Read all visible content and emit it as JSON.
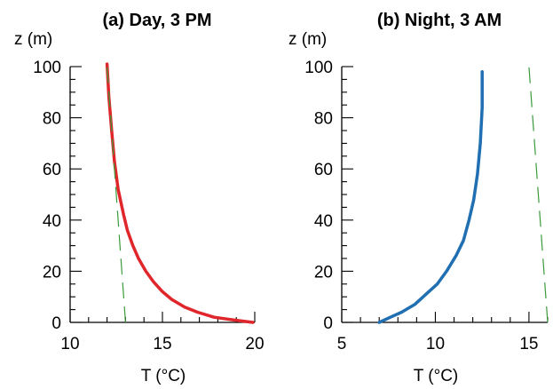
{
  "chart_data": [
    {
      "type": "line",
      "title": "(a) Day, 3 PM",
      "xlabel": "T (°C)",
      "ylabel": "z (m)",
      "xlim": [
        10,
        20
      ],
      "ylim": [
        0,
        100
      ],
      "xticks": [
        10,
        15,
        20
      ],
      "yticks": [
        0,
        20,
        40,
        60,
        80,
        100
      ],
      "grid": false,
      "series": [
        {
          "style": "solid",
          "color": "#e0262a",
          "x": [
            19.9,
            18.8,
            17.8,
            16.9,
            16.2,
            15.5,
            15.0,
            14.5,
            14.1,
            13.7,
            13.4,
            13.1,
            12.9,
            12.6,
            12.4,
            12.25,
            12.1,
            12.0
          ],
          "y": [
            0,
            1,
            2,
            4,
            6,
            9,
            12,
            16,
            20,
            25,
            30,
            36,
            42,
            52,
            63,
            75,
            88,
            101
          ]
        },
        {
          "style": "dashed",
          "color": "#3a9a3a",
          "x": [
            13.0,
            12.0
          ],
          "y": [
            0,
            100
          ]
        }
      ]
    },
    {
      "type": "line",
      "title": "(b) Night, 3 AM",
      "xlabel": "T (°C)",
      "ylabel": "z (m)",
      "xlim": [
        5,
        16
      ],
      "ylim": [
        0,
        100
      ],
      "xticks": [
        5,
        10,
        15
      ],
      "yticks": [
        0,
        20,
        40,
        60,
        80,
        100
      ],
      "grid": false,
      "series": [
        {
          "style": "solid",
          "color": "#1f6fb2",
          "x": [
            7.0,
            7.6,
            8.2,
            8.9,
            9.5,
            10.1,
            10.6,
            11.1,
            11.5,
            11.8,
            12.05,
            12.25,
            12.4,
            12.5,
            12.5
          ],
          "y": [
            0,
            2,
            4,
            7,
            11,
            15,
            20,
            26,
            32,
            40,
            48,
            58,
            70,
            84,
            98
          ]
        },
        {
          "style": "dashed",
          "color": "#3a9a3a",
          "x": [
            16.0,
            15.0
          ],
          "y": [
            0,
            100
          ]
        }
      ]
    }
  ]
}
